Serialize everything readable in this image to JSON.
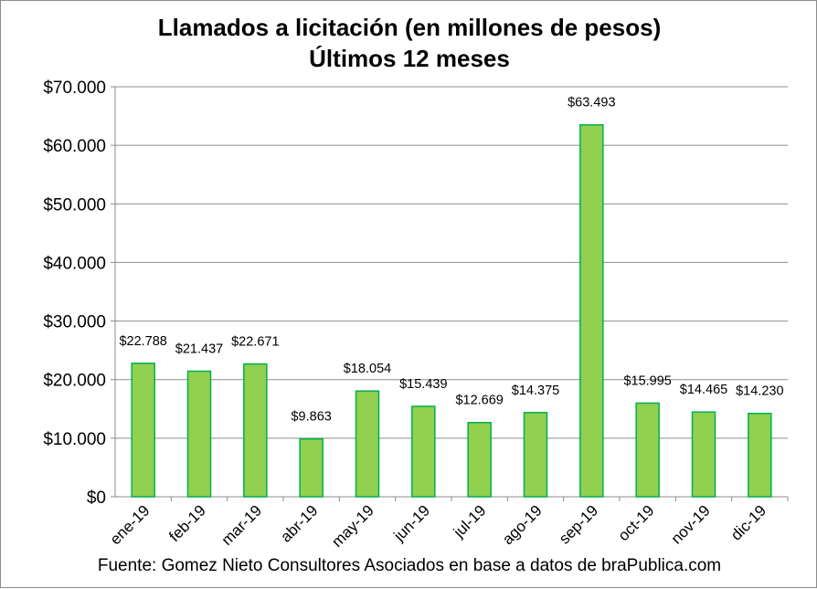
{
  "chart_data": {
    "type": "bar",
    "title": "Llamados a licitación (en millones de pesos)",
    "subtitle": "Últimos 12 meses",
    "categories": [
      "ene-19",
      "feb-19",
      "mar-19",
      "abr-19",
      "may-19",
      "jun-19",
      "jul-19",
      "ago-19",
      "sep-19",
      "oct-19",
      "nov-19",
      "dic-19"
    ],
    "values": [
      22788,
      21437,
      22671,
      9863,
      18054,
      15439,
      12669,
      14375,
      63493,
      15995,
      14465,
      14230
    ],
    "data_labels": [
      "$22.788",
      "$21.437",
      "$22.671",
      "$9.863",
      "$18.054",
      "$15.439",
      "$12.669",
      "$14.375",
      "$63.493",
      "$15.995",
      "$14.465",
      "$14.230"
    ],
    "y_ticks": [
      0,
      10000,
      20000,
      30000,
      40000,
      50000,
      60000,
      70000
    ],
    "y_tick_labels": [
      "$0",
      "$10.000",
      "$20.000",
      "$30.000",
      "$40.000",
      "$50.000",
      "$60.000",
      "$70.000"
    ],
    "ylim": [
      0,
      70000
    ],
    "grid": true,
    "legend": "none",
    "bar_color": "#92d050",
    "bar_edge_color": "#00b050",
    "source_note": "Fuente: Gomez Nieto Consultores Asociados en base a datos de braPublica.com"
  }
}
